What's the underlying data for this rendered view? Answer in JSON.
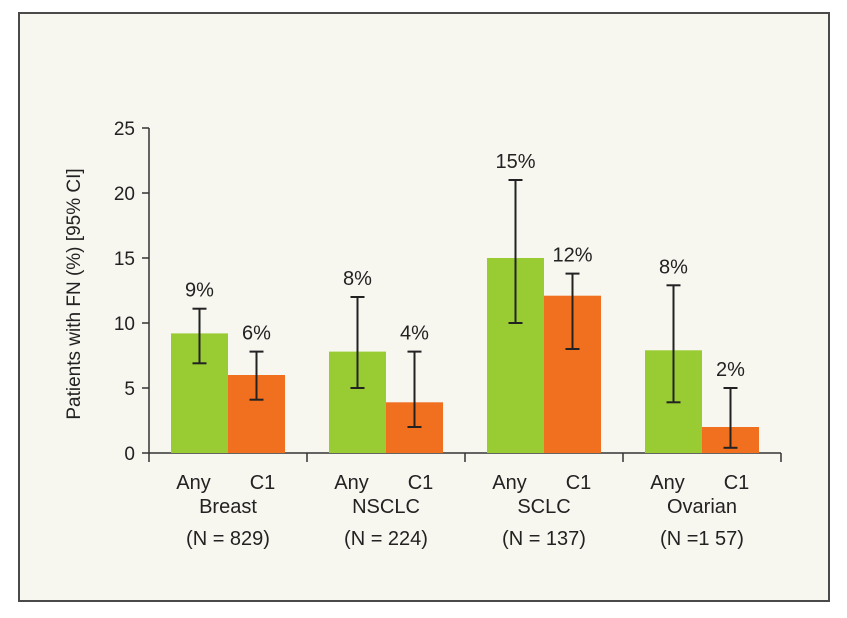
{
  "chart_data": {
    "type": "bar",
    "title": "",
    "xlabel": "",
    "ylabel": "Patients with FN (%) [95% CI]",
    "ylim": [
      0,
      25
    ],
    "yticks": [
      "0",
      "5",
      "10",
      "15",
      "20",
      "25"
    ],
    "grid": false,
    "colors": {
      "Any": "#99cc33",
      "C1": "#f07020"
    },
    "groups": [
      {
        "name": "Breast",
        "n_label": "(N = 829)",
        "bars": [
          {
            "category": "Any",
            "value": 9.2,
            "ci": [
              6.9,
              11.1
            ],
            "label": "9%"
          },
          {
            "category": "C1",
            "value": 6.0,
            "ci": [
              4.1,
              7.8
            ],
            "label": "6%"
          }
        ]
      },
      {
        "name": "NSCLC",
        "n_label": "(N = 224)",
        "bars": [
          {
            "category": "Any",
            "value": 7.8,
            "ci": [
              5.0,
              12.0
            ],
            "label": "8%"
          },
          {
            "category": "C1",
            "value": 3.9,
            "ci": [
              2.0,
              7.8
            ],
            "label": "4%"
          }
        ]
      },
      {
        "name": "SCLC",
        "n_label": "(N = 137)",
        "bars": [
          {
            "category": "Any",
            "value": 15.0,
            "ci": [
              10.0,
              21.0
            ],
            "label": "15%"
          },
          {
            "category": "C1",
            "value": 12.1,
            "ci": [
              8.0,
              13.8
            ],
            "label": "12%"
          }
        ]
      },
      {
        "name": "Ovarian",
        "n_label": "(N =1 57)",
        "bars": [
          {
            "category": "Any",
            "value": 7.9,
            "ci": [
              3.9,
              12.9
            ],
            "label": "8%"
          },
          {
            "category": "C1",
            "value": 2.0,
            "ci": [
              0.4,
              5.0
            ],
            "label": "2%"
          }
        ]
      }
    ]
  }
}
